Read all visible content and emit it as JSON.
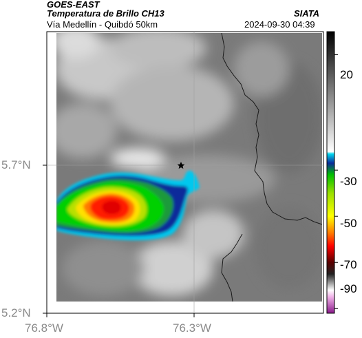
{
  "header": {
    "satellite": "GOES-EAST",
    "product": "Temperatura de Brillo CH13",
    "region": "Vía Medellín - Quibdó 50km",
    "organization": "SIATA",
    "timestamp": "2024-09-30 04:39"
  },
  "map": {
    "lat_ticks": [
      "5.7°N",
      "5.2°N"
    ],
    "lon_ticks": [
      "76.8°W",
      "76.3°W"
    ],
    "marker": "star-marker"
  },
  "colorbar": {
    "ticks": [
      "20",
      "-30",
      "-50",
      "-70",
      "-90"
    ],
    "stops": [
      {
        "value": 30,
        "color": "#000000"
      },
      {
        "value": -22,
        "color": "#ffffff"
      },
      {
        "value": -23,
        "color": "#00d8f0"
      },
      {
        "value": -27,
        "color": "#0a2a9a"
      },
      {
        "value": -32,
        "color": "#00c000"
      },
      {
        "value": -40,
        "color": "#9be000"
      },
      {
        "value": -50,
        "color": "#ffff00"
      },
      {
        "value": -57,
        "color": "#ff8000"
      },
      {
        "value": -63,
        "color": "#ff0000"
      },
      {
        "value": -70,
        "color": "#5a0000"
      },
      {
        "value": -75,
        "color": "#222222"
      },
      {
        "value": -82,
        "color": "#ffffff"
      },
      {
        "value": -85,
        "color": "#f0b0e8"
      },
      {
        "value": -92,
        "color": "#8a1a8a"
      }
    ]
  }
}
